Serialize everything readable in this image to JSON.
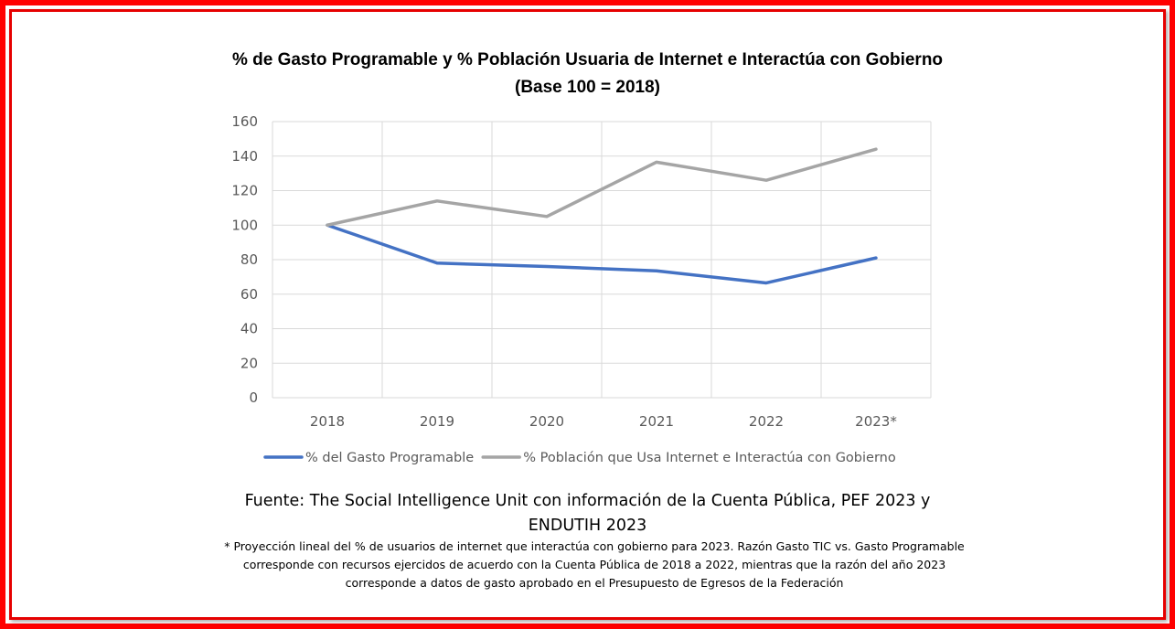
{
  "chart_data": {
    "type": "line",
    "title": "% de Gasto Programable y % Población Usuaria de Internet e Interactúa con Gobierno",
    "subtitle": "(Base 100 = 2018)",
    "categories": [
      "2018",
      "2019",
      "2020",
      "2021",
      "2022",
      "2023*"
    ],
    "ylim": [
      0,
      160
    ],
    "yticks": [
      "0",
      "20",
      "40",
      "60",
      "80",
      "100",
      "120",
      "140",
      "160"
    ],
    "grid": true,
    "legend_position": "bottom",
    "series": [
      {
        "name": "% del Gasto Programable",
        "color": "#4472c4",
        "values": [
          100,
          78,
          76,
          73.5,
          66.5,
          81
        ]
      },
      {
        "name": "% Población que Usa Internet e Interactúa con Gobierno",
        "color": "#a5a5a5",
        "values": [
          100,
          114,
          105,
          136.5,
          126,
          144
        ]
      }
    ]
  },
  "source": {
    "line1": "Fuente: The Social Intelligence Unit con información de la Cuenta Pública, PEF 2023 y",
    "line2": "ENDUTIH 2023",
    "note": "* Proyección lineal del % de usuarios de internet que interactúa con gobierno para 2023. Razón Gasto TIC vs. Gasto Programable corresponde con recursos ejercidos de acuerdo con la Cuenta Pública de 2018 a 2022, mientras que la razón del año 2023 corresponde a datos de gasto aprobado en el Presupuesto de Egresos de la Federación"
  }
}
